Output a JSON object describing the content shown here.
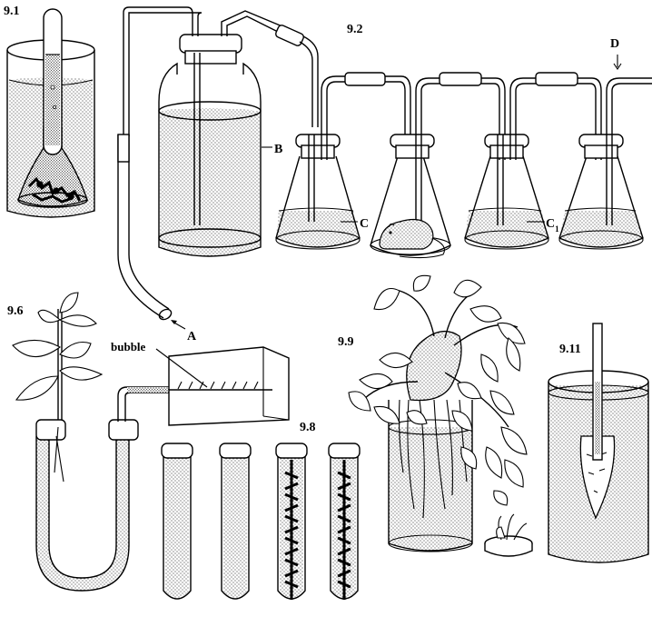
{
  "labels": {
    "fig_9_1": "9.1",
    "fig_9_2": "9.2",
    "fig_9_6": "9.6",
    "fig_9_8": "9.8",
    "fig_9_9": "9.9",
    "fig_9_11": "9.11",
    "label_a": "A",
    "label_b": "B",
    "label_c": "C",
    "label_c1": "C",
    "label_c1_sub": "1",
    "label_d": "D",
    "bubble": "bubble"
  }
}
